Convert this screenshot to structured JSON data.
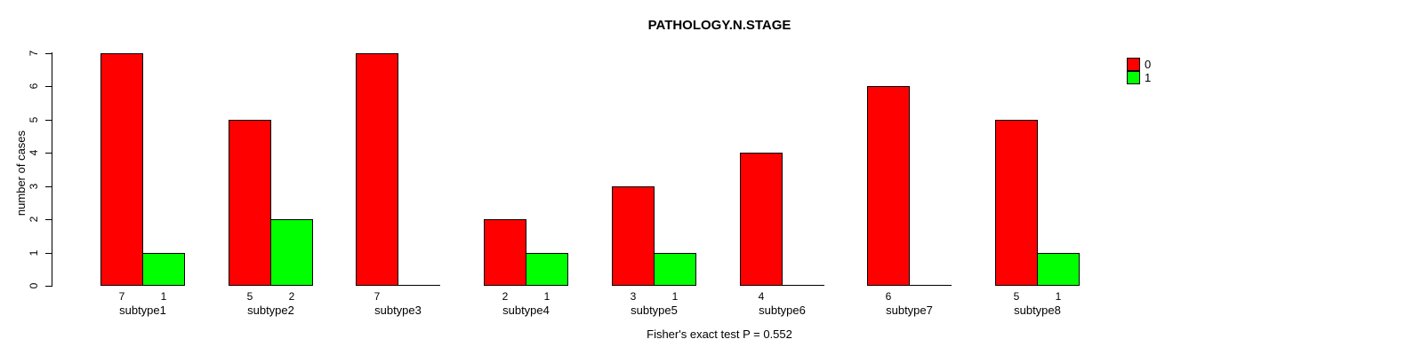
{
  "chart_data": {
    "type": "bar",
    "title": "PATHOLOGY.N.STAGE",
    "ylabel": "number of cases",
    "xlabel": "Fisher's exact test P = 0.552",
    "categories": [
      "subtype1",
      "subtype2",
      "subtype3",
      "subtype4",
      "subtype5",
      "subtype6",
      "subtype7",
      "subtype8"
    ],
    "series": [
      {
        "name": "0",
        "color": "#FF0000",
        "values": [
          7,
          5,
          7,
          2,
          3,
          4,
          6,
          5
        ]
      },
      {
        "name": "1",
        "color": "#00FF00",
        "values": [
          1,
          2,
          0,
          1,
          1,
          0,
          0,
          1
        ]
      }
    ],
    "bar_value_labels": [
      [
        "7",
        "1"
      ],
      [
        "5",
        "2"
      ],
      [
        "7",
        ""
      ],
      [
        "2",
        "1"
      ],
      [
        "3",
        "1"
      ],
      [
        "4",
        ""
      ],
      [
        "6",
        ""
      ],
      [
        "5",
        "1"
      ]
    ],
    "y_ticks": [
      "0",
      "1",
      "2",
      "3",
      "4",
      "5",
      "6",
      "7"
    ],
    "ylim": [
      0,
      7
    ],
    "grid": false,
    "legend_position": "topright",
    "legend": {
      "entries": [
        {
          "label": "0",
          "color": "#FF0000"
        },
        {
          "label": "1",
          "color": "#00FF00"
        }
      ]
    },
    "axis_color": "#000000",
    "background": "#FFFFFF"
  }
}
